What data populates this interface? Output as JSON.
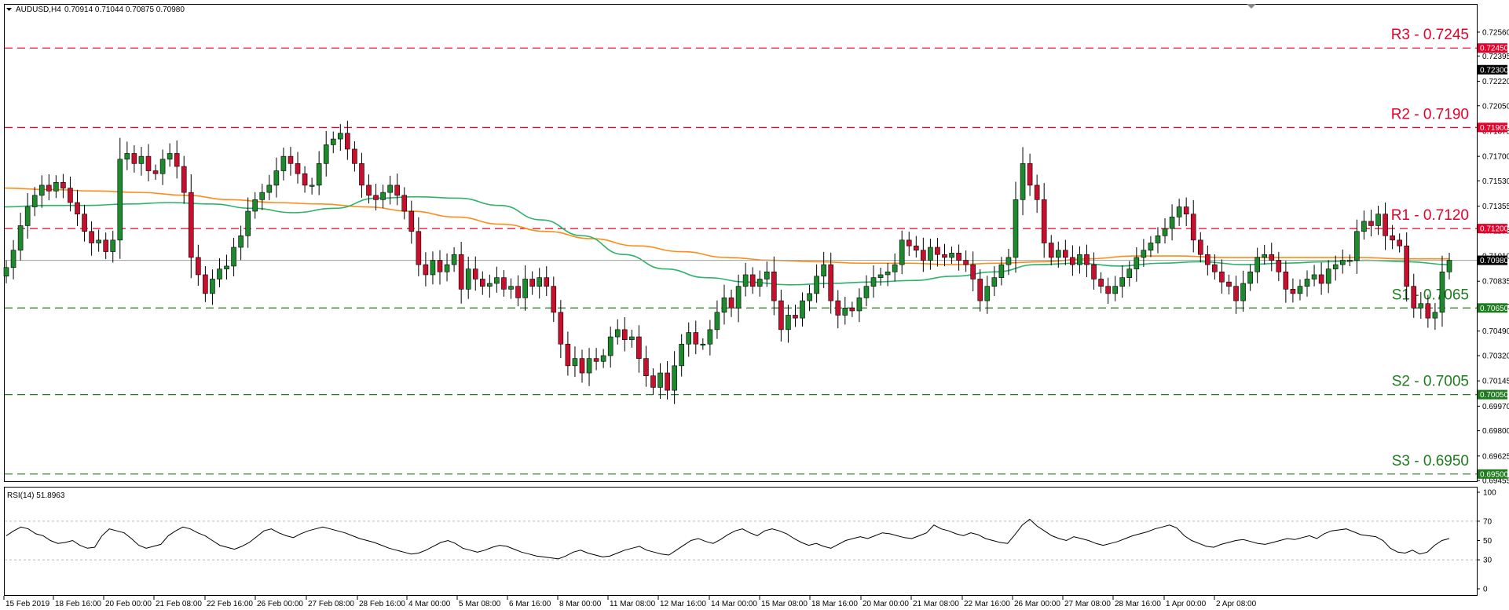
{
  "header": {
    "symbol": "AUDUSD,H4",
    "ohlc": "0.70914 0.71044 0.70875 0.70980"
  },
  "rsi_header": "RSI(14) 51.8963",
  "colors": {
    "bull": "#1e8a2e",
    "bear": "#c8102e",
    "ma_fast": "#2eb36b",
    "ma_slow": "#ff8c1a",
    "resistance": "#e8002a",
    "support": "#1e7b1e"
  },
  "chart_data": {
    "type": "candlestick",
    "title": "AUDUSD,H4",
    "ylim": [
      0.6945,
      0.7275
    ],
    "price_axis_ticks": [
      "0.72560",
      "0.72395",
      "0.72220",
      "0.72050",
      "0.71875",
      "0.71700",
      "0.71530",
      "0.71355",
      "0.71185",
      "0.71010",
      "0.70835",
      "0.70660",
      "0.70490",
      "0.70320",
      "0.70145",
      "0.69970",
      "0.69800",
      "0.69625",
      "0.69455"
    ],
    "current_price_label": "0.70980",
    "marker_price_label": "0.72300",
    "x_labels": [
      "15 Feb 2019",
      "18 Feb 16:00",
      "20 Feb 00:00",
      "21 Feb 08:00",
      "22 Feb 16:00",
      "26 Feb 00:00",
      "27 Feb 08:00",
      "28 Feb 16:00",
      "4 Mar 00:00",
      "5 Mar 08:00",
      "6 Mar 16:00",
      "8 Mar 00:00",
      "11 Mar 08:00",
      "12 Mar 16:00",
      "14 Mar 00:00",
      "15 Mar 08:00",
      "18 Mar 16:00",
      "20 Mar 00:00",
      "21 Mar 08:00",
      "22 Mar 16:00",
      "26 Mar 00:00",
      "27 Mar 08:00",
      "28 Mar 16:00",
      "1 Apr 00:00",
      "2 Apr 08:00"
    ],
    "levels": [
      {
        "label": "R3 - 0.7245",
        "value": 0.7245,
        "tag": "0.72450",
        "kind": "resistance"
      },
      {
        "label": "R2 - 0.7190",
        "value": 0.719,
        "tag": "0.71900",
        "kind": "resistance"
      },
      {
        "label": "R1 - 0.7120",
        "value": 0.712,
        "tag": "0.71200",
        "kind": "resistance"
      },
      {
        "label": "S1 - 0.7065",
        "value": 0.7065,
        "tag": "0.70650",
        "kind": "support"
      },
      {
        "label": "S2 - 0.7005",
        "value": 0.7005,
        "tag": "0.70050",
        "kind": "support"
      },
      {
        "label": "S3 - 0.6950",
        "value": 0.695,
        "tag": "0.69500",
        "kind": "support"
      }
    ],
    "current_price": 0.7098,
    "closes": [
      0.7093,
      0.7105,
      0.7122,
      0.7135,
      0.7143,
      0.715,
      0.7146,
      0.7152,
      0.7148,
      0.7138,
      0.713,
      0.7118,
      0.711,
      0.7112,
      0.7104,
      0.7112,
      0.7168,
      0.7172,
      0.7165,
      0.717,
      0.716,
      0.7158,
      0.7168,
      0.7172,
      0.7163,
      0.7145,
      0.71,
      0.7088,
      0.7075,
      0.7085,
      0.7092,
      0.7094,
      0.7107,
      0.7115,
      0.7132,
      0.714,
      0.7145,
      0.715,
      0.716,
      0.717,
      0.7165,
      0.7158,
      0.715,
      0.715,
      0.7165,
      0.7178,
      0.7182,
      0.7186,
      0.7175,
      0.7165,
      0.715,
      0.7143,
      0.714,
      0.7145,
      0.715,
      0.7143,
      0.7132,
      0.7118,
      0.7095,
      0.7088,
      0.7098,
      0.709,
      0.7095,
      0.7102,
      0.7078,
      0.7092,
      0.7085,
      0.708,
      0.7082,
      0.7086,
      0.7078,
      0.708,
      0.7072,
      0.7085,
      0.708,
      0.7086,
      0.708,
      0.7062,
      0.704,
      0.7025,
      0.703,
      0.702,
      0.703,
      0.7028,
      0.7032,
      0.7045,
      0.705,
      0.7043,
      0.7045,
      0.703,
      0.7018,
      0.701,
      0.702,
      0.7008,
      0.7025,
      0.704,
      0.7048,
      0.704,
      0.704,
      0.705,
      0.7062,
      0.7072,
      0.7065,
      0.708,
      0.7088,
      0.708,
      0.7085,
      0.709,
      0.707,
      0.705,
      0.706,
      0.7058,
      0.707,
      0.7075,
      0.7087,
      0.7095,
      0.707,
      0.706,
      0.7065,
      0.7063,
      0.7072,
      0.708,
      0.7086,
      0.7088,
      0.709,
      0.7095,
      0.7112,
      0.7108,
      0.7105,
      0.7098,
      0.7107,
      0.7102,
      0.71,
      0.7103,
      0.7098,
      0.7095,
      0.7085,
      0.707,
      0.708,
      0.7086,
      0.7095,
      0.71,
      0.714,
      0.7165,
      0.715,
      0.714,
      0.711,
      0.71,
      0.7105,
      0.71,
      0.7095,
      0.7102,
      0.7095,
      0.7085,
      0.708,
      0.7075,
      0.708,
      0.7086,
      0.7092,
      0.71,
      0.7105,
      0.711,
      0.7115,
      0.712,
      0.7128,
      0.7135,
      0.713,
      0.7112,
      0.7102,
      0.7095,
      0.709,
      0.7083,
      0.708,
      0.707,
      0.7082,
      0.709,
      0.71,
      0.7102,
      0.7098,
      0.709,
      0.7078,
      0.7075,
      0.708,
      0.7085,
      0.7088,
      0.7082,
      0.7092,
      0.7095,
      0.7098,
      0.7098,
      0.7118,
      0.7125,
      0.7122,
      0.713,
      0.7115,
      0.7112,
      0.7108,
      0.708,
      0.7065,
      0.7068,
      0.7058,
      0.7062,
      0.709,
      0.7098
    ],
    "ma_slow": [
      0.7148,
      0.7147,
      0.7146,
      0.7145,
      0.7143,
      0.714,
      0.7138,
      0.7137,
      0.7135,
      0.7132,
      0.7128,
      0.7123,
      0.7118,
      0.7113,
      0.7108,
      0.7104,
      0.71,
      0.7098,
      0.7097,
      0.7096,
      0.7096,
      0.7095,
      0.7096,
      0.7097,
      0.7099,
      0.7101,
      0.7101,
      0.71,
      0.71,
      0.71,
      0.71,
      0.7099,
      0.7099
    ],
    "ma_fast": [
      0.7135,
      0.7136,
      0.7136,
      0.7137,
      0.7138,
      0.7137,
      0.7134,
      0.7131,
      0.7134,
      0.7141,
      0.7142,
      0.7141,
      0.7136,
      0.7126,
      0.7115,
      0.7102,
      0.7092,
      0.7086,
      0.7083,
      0.7081,
      0.7082,
      0.7083,
      0.7084,
      0.7087,
      0.709,
      0.7095,
      0.7096,
      0.7094,
      0.7096,
      0.7097,
      0.7095,
      0.7096,
      0.7097,
      0.7098,
      0.7097,
      0.7095
    ],
    "rsi": {
      "levels": [
        "100",
        "70",
        "50",
        "30",
        "0"
      ],
      "values": [
        55,
        60,
        64,
        62,
        57,
        55,
        50,
        47,
        48,
        50,
        45,
        42,
        43,
        55,
        62,
        60,
        58,
        52,
        45,
        42,
        44,
        46,
        55,
        60,
        64,
        62,
        58,
        55,
        50,
        45,
        43,
        41,
        44,
        48,
        54,
        60,
        62,
        58,
        55,
        53,
        57,
        60,
        62,
        64,
        62,
        60,
        58,
        55,
        52,
        50,
        48,
        45,
        42,
        40,
        38,
        36,
        37,
        40,
        44,
        48,
        50,
        47,
        42,
        40,
        38,
        40,
        43,
        45,
        44,
        41,
        38,
        36,
        34,
        33,
        32,
        31,
        34,
        38,
        40,
        37,
        35,
        33,
        34,
        37,
        40,
        42,
        44,
        40,
        38,
        36,
        35,
        40,
        45,
        50,
        52,
        49,
        47,
        51,
        56,
        60,
        62,
        58,
        55,
        60,
        62,
        60,
        57,
        52,
        48,
        45,
        47,
        44,
        42,
        46,
        50,
        52,
        54,
        52,
        55,
        58,
        57,
        55,
        53,
        52,
        55,
        58,
        66,
        62,
        60,
        57,
        55,
        58,
        56,
        52,
        50,
        48,
        47,
        56,
        66,
        72,
        65,
        60,
        55,
        52,
        50,
        54,
        52,
        50,
        47,
        45,
        47,
        49,
        52,
        55,
        57,
        59,
        62,
        64,
        66,
        63,
        55,
        50,
        47,
        44,
        43,
        46,
        48,
        50,
        51,
        49,
        47,
        46,
        48,
        50,
        52,
        51,
        53,
        55,
        52,
        57,
        60,
        61,
        62,
        59,
        56,
        55,
        54,
        50,
        42,
        38,
        37,
        40,
        36,
        38,
        45,
        50,
        52
      ]
    }
  }
}
